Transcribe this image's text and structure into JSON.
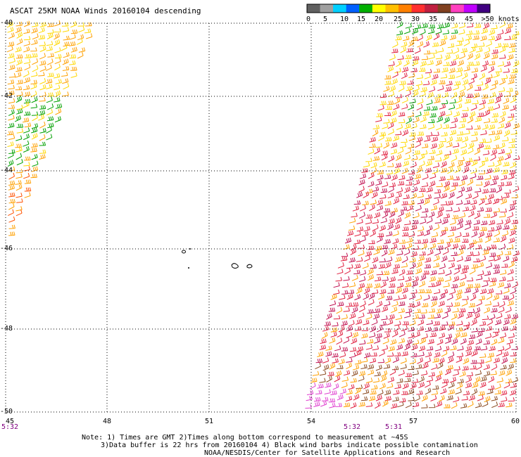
{
  "title": "ASCAT 25KM NOAA Winds 20160104 descending",
  "colorbar": {
    "colors": [
      "#606060",
      "#a0a0a0",
      "#00d0ff",
      "#0060ff",
      "#00b000",
      "#ffff00",
      "#ffc000",
      "#ff8000",
      "#ff3030",
      "#c02040",
      "#804020",
      "#ff40c0",
      "#c000ff",
      "#400080"
    ],
    "labels": [
      "0",
      "5",
      "10",
      "15",
      "20",
      "25",
      "30",
      "35",
      "40",
      "45",
      ">50 knots"
    ]
  },
  "map": {
    "lat_labels": [
      "-40",
      "-42",
      "-44",
      "-46",
      "-48",
      "-50"
    ],
    "lon_labels": [
      "45",
      "48",
      "51",
      "54",
      "57",
      "60"
    ],
    "time_labels": [
      "5:32",
      "5:32",
      "5:31"
    ]
  },
  "notes": {
    "line1": "Note: 1) Times are GMT 2)Times along bottom correspond to measurement at ~45S",
    "line2": "3)Data buffer is 22 hrs from 20160104 4) Black wind barbs indicate possible contamination",
    "line3": "NOAA/NESDIS/Center for Satellite Applications and Research"
  }
}
